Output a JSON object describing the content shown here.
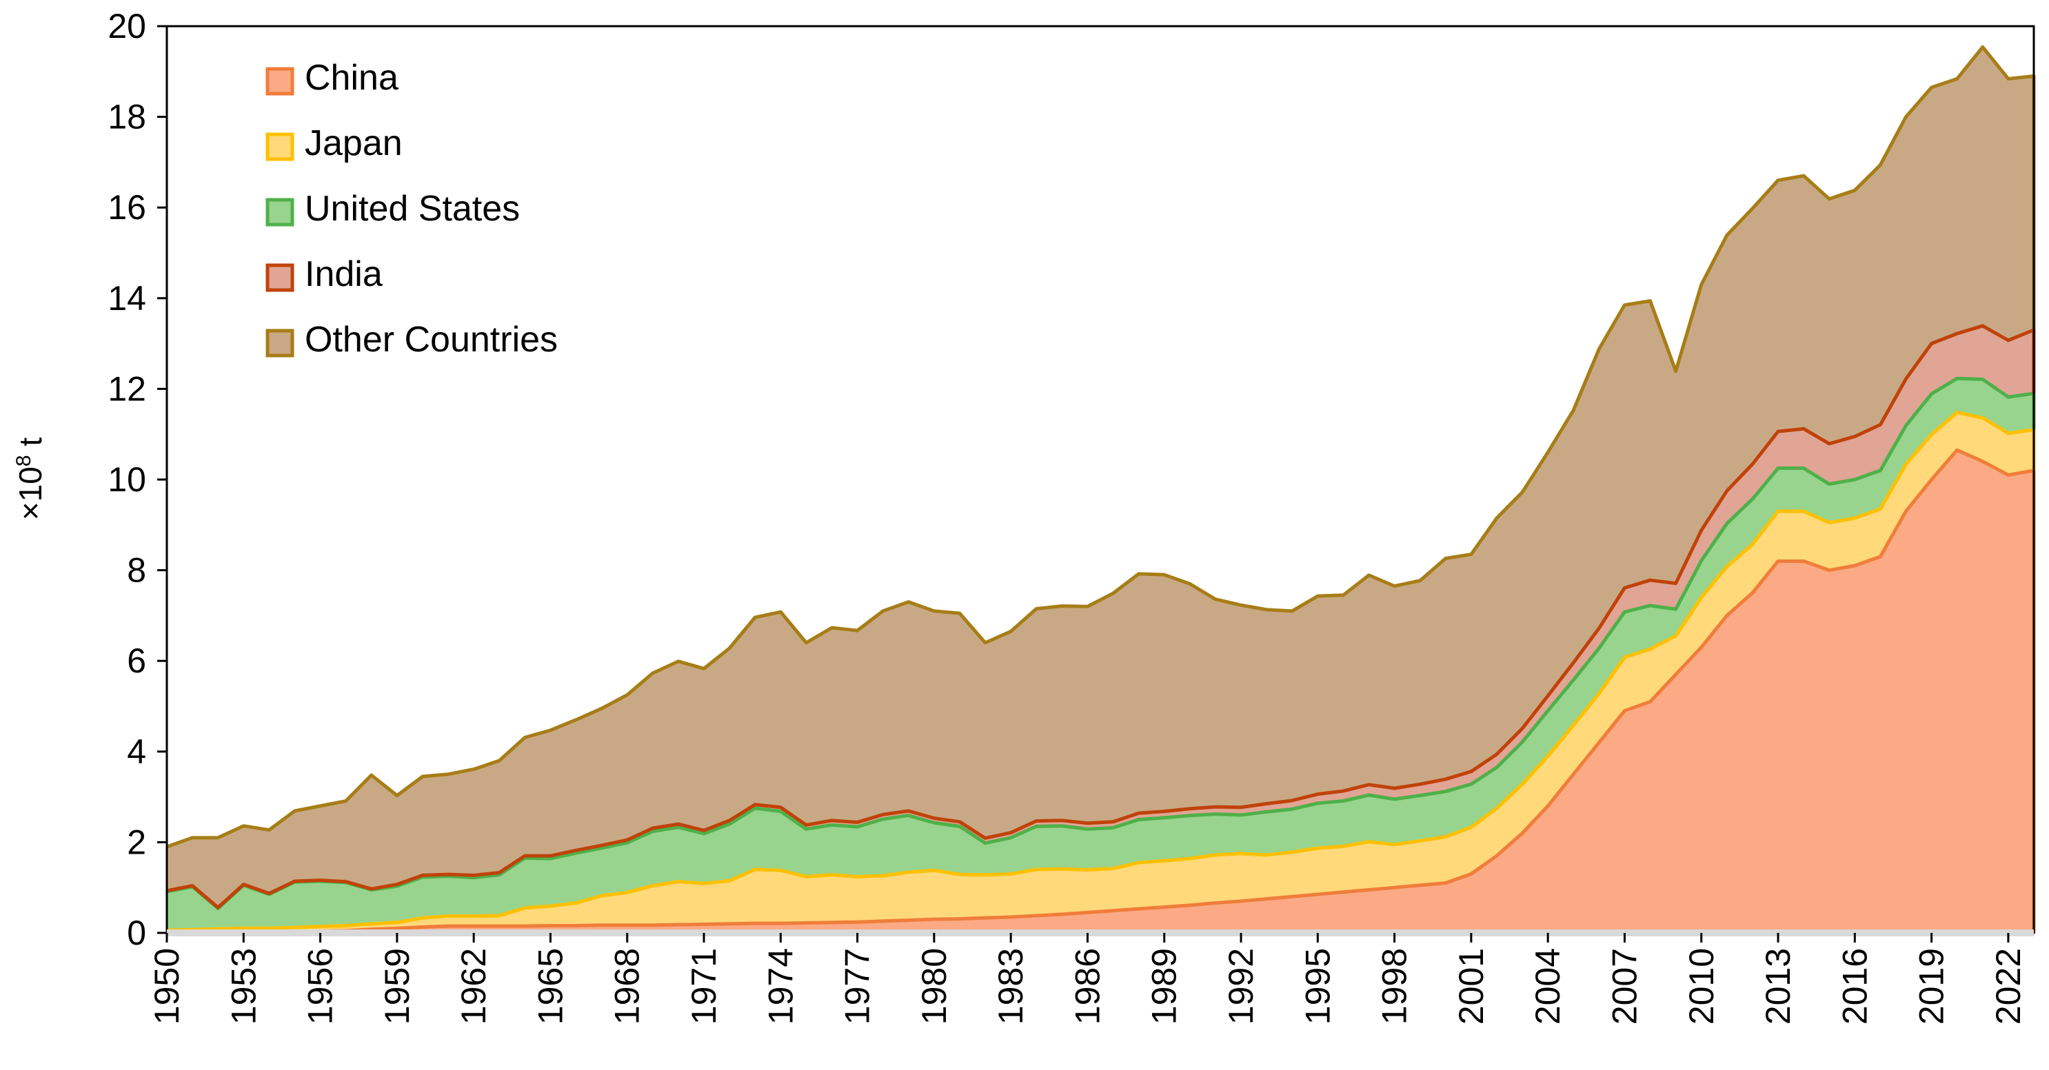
{
  "chart_data": {
    "type": "area",
    "stacked": true,
    "title": "",
    "xlabel": "",
    "ylabel": "×10",
    "ylabel_exponent": "8",
    "ylabel_unit": " t",
    "ylim": [
      0,
      20
    ],
    "yticks": [
      "0",
      "2",
      "4",
      "6",
      "8",
      "10",
      "12",
      "14",
      "16",
      "18",
      "20"
    ],
    "x_start": 1950,
    "x_end": 2023,
    "xticks": [
      "1950",
      "1953",
      "1956",
      "1959",
      "1962",
      "1965",
      "1968",
      "1971",
      "1974",
      "1977",
      "1980",
      "1983",
      "1986",
      "1989",
      "1992",
      "1995",
      "1998",
      "2001",
      "2004",
      "2007",
      "2010",
      "2013",
      "2016",
      "2019",
      "2022"
    ],
    "legend_position": "top-left",
    "grid": false,
    "series": [
      {
        "name": "China",
        "color": "#f07d3a",
        "fill": "#fbaa85",
        "values": [
          0.01,
          0.01,
          0.02,
          0.02,
          0.02,
          0.03,
          0.04,
          0.05,
          0.08,
          0.1,
          0.13,
          0.15,
          0.15,
          0.15,
          0.15,
          0.16,
          0.16,
          0.17,
          0.17,
          0.17,
          0.18,
          0.19,
          0.2,
          0.21,
          0.21,
          0.22,
          0.23,
          0.24,
          0.26,
          0.28,
          0.3,
          0.31,
          0.33,
          0.35,
          0.38,
          0.41,
          0.45,
          0.49,
          0.53,
          0.57,
          0.61,
          0.66,
          0.7,
          0.75,
          0.8,
          0.85,
          0.9,
          0.95,
          1.0,
          1.05,
          1.1,
          1.3,
          1.7,
          2.2,
          2.8,
          3.5,
          4.2,
          4.9,
          5.1,
          5.7,
          6.3,
          7.0,
          7.5,
          8.2,
          8.2,
          8.0,
          8.1,
          8.3,
          9.3,
          10.0,
          10.65,
          10.4,
          10.1,
          10.2
        ]
      },
      {
        "name": "Japan",
        "color": "#ffc000",
        "fill": "#ffd97a",
        "values": [
          0.05,
          0.06,
          0.07,
          0.08,
          0.08,
          0.09,
          0.1,
          0.11,
          0.12,
          0.13,
          0.2,
          0.22,
          0.22,
          0.23,
          0.4,
          0.43,
          0.5,
          0.65,
          0.72,
          0.87,
          0.95,
          0.9,
          0.95,
          1.19,
          1.17,
          1.02,
          1.05,
          1.0,
          1.0,
          1.06,
          1.08,
          0.98,
          0.95,
          0.95,
          1.02,
          1.0,
          0.94,
          0.93,
          1.02,
          1.02,
          1.03,
          1.06,
          1.05,
          0.97,
          0.98,
          1.02,
          1.01,
          1.06,
          0.95,
          0.98,
          1.02,
          1.03,
          1.05,
          1.08,
          1.1,
          1.08,
          1.08,
          1.18,
          1.16,
          0.85,
          1.1,
          1.08,
          1.07,
          1.1,
          1.1,
          1.05,
          1.05,
          1.05,
          1.04,
          0.99,
          0.83,
          0.96,
          0.92,
          0.9
        ]
      },
      {
        "name": "United States",
        "color": "#4fb04a",
        "fill": "#98d48d",
        "values": [
          0.85,
          0.95,
          0.45,
          0.95,
          0.75,
          1.0,
          1.0,
          0.95,
          0.75,
          0.8,
          0.9,
          0.88,
          0.85,
          0.9,
          1.1,
          1.05,
          1.1,
          1.05,
          1.1,
          1.2,
          1.2,
          1.1,
          1.25,
          1.35,
          1.3,
          1.05,
          1.1,
          1.1,
          1.25,
          1.25,
          1.05,
          1.06,
          0.7,
          0.8,
          0.95,
          0.95,
          0.9,
          0.9,
          0.95,
          0.95,
          0.95,
          0.9,
          0.85,
          0.95,
          0.95,
          0.99,
          1.0,
          1.03,
          1.0,
          1.0,
          1.0,
          0.95,
          0.9,
          0.93,
          1.0,
          1.0,
          1.0,
          1.0,
          0.96,
          0.59,
          0.81,
          0.95,
          1.0,
          0.95,
          0.95,
          0.85,
          0.85,
          0.85,
          0.85,
          0.9,
          0.75,
          0.85,
          0.8,
          0.8
        ]
      },
      {
        "name": "India",
        "color": "#c0420a",
        "fill": "#e0a594",
        "values": [
          0.02,
          0.02,
          0.02,
          0.02,
          0.02,
          0.02,
          0.02,
          0.02,
          0.02,
          0.04,
          0.04,
          0.04,
          0.05,
          0.05,
          0.05,
          0.06,
          0.06,
          0.06,
          0.06,
          0.07,
          0.07,
          0.07,
          0.08,
          0.08,
          0.09,
          0.09,
          0.1,
          0.1,
          0.1,
          0.1,
          0.1,
          0.1,
          0.11,
          0.11,
          0.12,
          0.12,
          0.13,
          0.13,
          0.14,
          0.14,
          0.15,
          0.16,
          0.17,
          0.18,
          0.19,
          0.2,
          0.22,
          0.23,
          0.24,
          0.25,
          0.27,
          0.28,
          0.29,
          0.3,
          0.33,
          0.38,
          0.44,
          0.53,
          0.56,
          0.57,
          0.67,
          0.72,
          0.77,
          0.81,
          0.87,
          0.89,
          0.95,
          1.01,
          1.03,
          1.11,
          0.99,
          1.18,
          1.25,
          1.4
        ]
      },
      {
        "name": "Other Countries",
        "color": "#a77d17",
        "fill": "#c9a985",
        "values": [
          0.97,
          1.06,
          1.54,
          1.29,
          1.4,
          1.55,
          1.64,
          1.78,
          2.51,
          1.96,
          2.18,
          2.21,
          2.34,
          2.47,
          2.61,
          2.77,
          2.88,
          3.02,
          3.2,
          3.42,
          3.59,
          3.57,
          3.8,
          4.13,
          4.31,
          4.02,
          4.25,
          4.23,
          4.49,
          4.61,
          4.57,
          4.6,
          4.31,
          4.44,
          4.68,
          4.73,
          4.78,
          5.04,
          5.28,
          5.22,
          4.96,
          4.58,
          4.46,
          4.28,
          4.18,
          4.37,
          4.32,
          4.62,
          4.46,
          4.49,
          4.87,
          4.79,
          5.21,
          5.21,
          5.37,
          5.57,
          6.16,
          6.24,
          6.16,
          4.68,
          5.42,
          5.64,
          5.64,
          5.54,
          5.58,
          5.4,
          5.43,
          5.73,
          5.78,
          5.65,
          5.62,
          6.15,
          5.77,
          5.6
        ]
      }
    ]
  }
}
